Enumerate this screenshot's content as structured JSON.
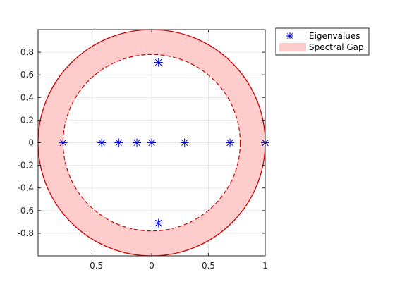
{
  "chart_data": {
    "type": "scatter",
    "title": "",
    "xlabel": "",
    "ylabel": "",
    "xlim": [
      -1,
      1
    ],
    "ylim": [
      -1,
      1
    ],
    "xticks": [
      -0.5,
      0,
      0.5,
      1
    ],
    "xtick_labels": [
      "-0.5",
      "0",
      "0.5",
      "1"
    ],
    "yticks": [
      -0.8,
      -0.6,
      -0.4,
      -0.2,
      0,
      0.2,
      0.4,
      0.6,
      0.8
    ],
    "ytick_labels": [
      "-0.8",
      "-0.6",
      "-0.4",
      "-0.2",
      "0",
      "0.2",
      "0.4",
      "0.6",
      "0.8"
    ],
    "grid": true,
    "legend_position": "outside-top-right",
    "series": [
      {
        "name": "Eigenvalues",
        "marker": "asterisk",
        "color": "#0000cc",
        "points": [
          {
            "x": 1.0,
            "y": 0.0
          },
          {
            "x": 1.0,
            "y": 0.0
          },
          {
            "x": 0.69,
            "y": 0.0
          },
          {
            "x": 0.29,
            "y": 0.0
          },
          {
            "x": 0.06,
            "y": 0.71
          },
          {
            "x": 0.06,
            "y": -0.71
          },
          {
            "x": 0.0,
            "y": 0.0
          },
          {
            "x": -0.13,
            "y": 0.0
          },
          {
            "x": -0.29,
            "y": 0.0
          },
          {
            "x": -0.44,
            "y": 0.0
          },
          {
            "x": -0.78,
            "y": 0.0
          }
        ]
      }
    ],
    "regions": [
      {
        "name": "Spectral Gap",
        "type": "annulus",
        "outer_radius": 1.0,
        "inner_radius": 0.78,
        "fill_color": "#ffcccc",
        "edge_color": "#cc0000"
      }
    ]
  }
}
